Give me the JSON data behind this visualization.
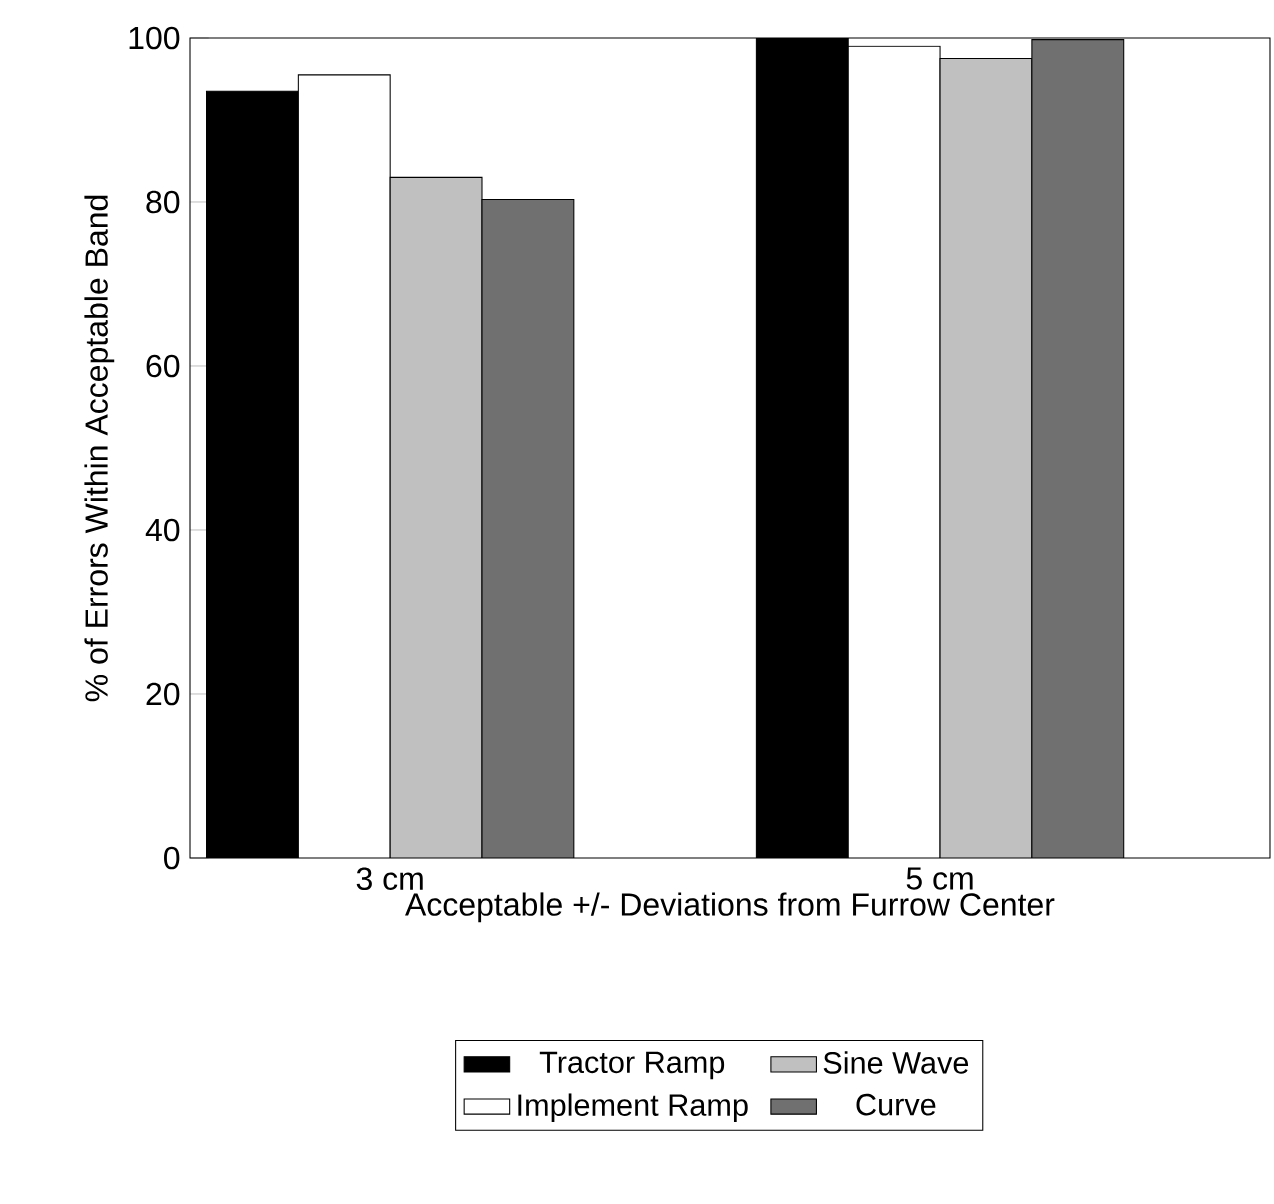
{
  "chart_data": {
    "type": "bar",
    "xlabel": "Acceptable +/- Deviations from Furrow Center",
    "ylabel": "% of Errors Within Acceptable Band",
    "categories": [
      "3 cm",
      "5 cm"
    ],
    "series": [
      {
        "name": "Tractor Ramp",
        "color": "#000000",
        "values": [
          93.5,
          100
        ]
      },
      {
        "name": "Implement Ramp",
        "color": "#ffffff",
        "values": [
          95.5,
          99
        ]
      },
      {
        "name": "Sine Wave",
        "color": "#c0c0c0",
        "values": [
          83,
          97.5
        ]
      },
      {
        "name": "Curve",
        "color": "#707070",
        "values": [
          80.3,
          99.8
        ]
      }
    ],
    "ylim": [
      0,
      100
    ],
    "yticks": [
      0,
      20,
      40,
      60,
      80,
      100
    ],
    "legend": "bottom",
    "grid": false
  }
}
